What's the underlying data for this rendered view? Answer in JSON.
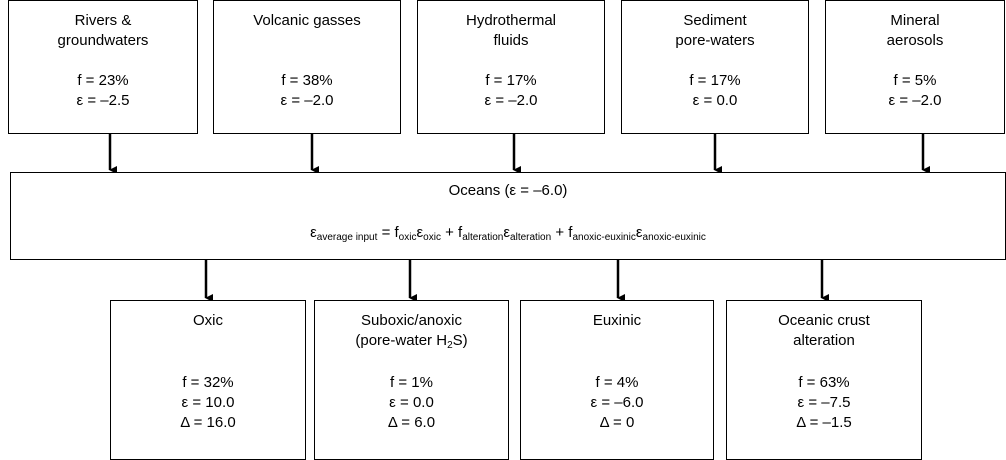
{
  "sources": [
    {
      "name": [
        "Rivers &",
        "groundwaters"
      ],
      "lines": [
        "f = 23%",
        "ε = –2.5"
      ]
    },
    {
      "name": [
        "Volcanic gasses"
      ],
      "lines": [
        "f = 38%",
        "ε = –2.0"
      ]
    },
    {
      "name": [
        "Hydrothermal",
        "fluids"
      ],
      "lines": [
        "f = 17%",
        "ε = –2.0"
      ]
    },
    {
      "name": [
        "Sediment",
        "pore-waters"
      ],
      "lines": [
        "f = 17%",
        "ε = 0.0"
      ]
    },
    {
      "name": [
        "Mineral",
        "aerosols"
      ],
      "lines": [
        "f = 5%",
        "ε = –2.0"
      ]
    }
  ],
  "ocean": {
    "title": "Oceans (ε = –6.0)",
    "formula": [
      "ε",
      "average input",
      " = f",
      "oxic",
      "ε",
      "oxic",
      " + f",
      "alteration",
      "ε",
      "alteration",
      " + f",
      "anoxic-euxinic",
      "ε",
      "anoxic-euxinic"
    ]
  },
  "sinks": [
    {
      "name": [
        [
          "Oxic"
        ]
      ],
      "lines": [
        "f = 32%",
        "ε = 10.0",
        "Δ = 16.0"
      ]
    },
    {
      "name": [
        [
          "Suboxic/anoxic"
        ],
        [
          "(pore-water H",
          "2",
          "S)"
        ]
      ],
      "lines": [
        "f = 1%",
        "ε = 0.0",
        "Δ = 6.0"
      ]
    },
    {
      "name": [
        [
          "Euxinic"
        ]
      ],
      "lines": [
        "f = 4%",
        "ε = –6.0",
        "Δ = 0"
      ]
    },
    {
      "name": [
        [
          "Oceanic crust"
        ],
        [
          "alteration"
        ]
      ],
      "lines": [
        "f = 63%",
        "ε = –7.5",
        "Δ = –1.5"
      ]
    }
  ]
}
